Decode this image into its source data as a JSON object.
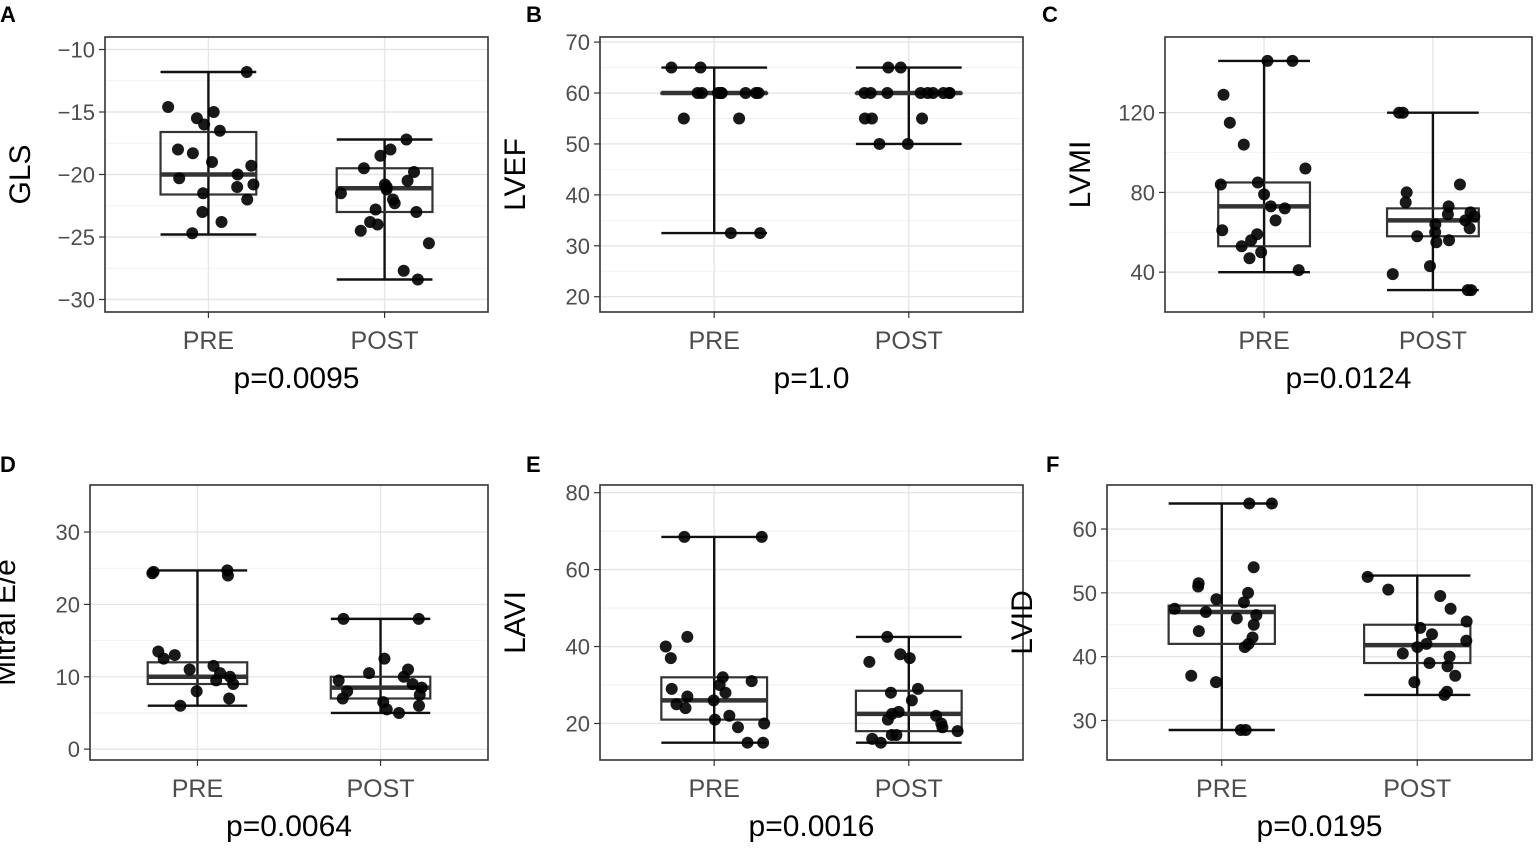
{
  "chart_data": [
    {
      "type": "boxplot",
      "panel_label": "A",
      "ylabel": "GLS",
      "xlabel": "p=0.0095",
      "categories": [
        "PRE",
        "POST"
      ],
      "ylim": [
        -31,
        -9
      ],
      "yticks": [
        -10,
        -15,
        -20,
        -25,
        -30
      ],
      "ytick_labels": [
        "−10",
        "−15",
        "−20",
        "−25",
        "−30"
      ],
      "series": [
        {
          "name": "PRE",
          "min": -24.8,
          "q1": -21.6,
          "median": -20.0,
          "q3": -16.6,
          "max": -11.8,
          "points": [
            -11.8,
            -14.6,
            -15.0,
            -15.5,
            -16.0,
            -16.5,
            -18.0,
            -18.3,
            -19.0,
            -19.3,
            -20.0,
            -20.3,
            -20.8,
            -21.0,
            -21.5,
            -22.0,
            -23.0,
            -23.8,
            -24.7
          ]
        },
        {
          "name": "POST",
          "min": -28.4,
          "q1": -23.0,
          "median": -21.1,
          "q3": -19.5,
          "max": -17.2,
          "points": [
            -17.2,
            -18.0,
            -18.5,
            -19.5,
            -19.8,
            -20.5,
            -20.8,
            -21.0,
            -21.2,
            -21.5,
            -22.0,
            -22.3,
            -22.8,
            -23.0,
            -23.8,
            -24.0,
            -24.5,
            -25.5,
            -27.7,
            -28.4
          ]
        }
      ]
    },
    {
      "type": "boxplot",
      "panel_label": "B",
      "ylabel": "LVEF",
      "xlabel": "p=1.0",
      "categories": [
        "PRE",
        "POST"
      ],
      "ylim": [
        17,
        71
      ],
      "yticks": [
        20,
        30,
        40,
        50,
        60,
        70
      ],
      "ytick_labels": [
        "20",
        "30",
        "40",
        "50",
        "60",
        "70"
      ],
      "series": [
        {
          "name": "PRE",
          "min": 32.5,
          "q1": 60,
          "median": 60,
          "q3": 60,
          "max": 65,
          "points": [
            65,
            65,
            60,
            60,
            60,
            60,
            60,
            60,
            60,
            60,
            60,
            60,
            55,
            55,
            32.5,
            32.5
          ]
        },
        {
          "name": "POST",
          "min": 50,
          "q1": 60,
          "median": 60,
          "q3": 60,
          "max": 65,
          "points": [
            65,
            65,
            60,
            60,
            60,
            60,
            60,
            60,
            60,
            60,
            60,
            55,
            55,
            55,
            50,
            50
          ]
        }
      ]
    },
    {
      "type": "boxplot",
      "panel_label": "C",
      "ylabel": "LVMI",
      "xlabel": "p=0.0124",
      "categories": [
        "PRE",
        "POST"
      ],
      "ylim": [
        20,
        158
      ],
      "yticks": [
        40,
        80,
        120
      ],
      "ytick_labels": [
        "40",
        "80",
        "120"
      ],
      "series": [
        {
          "name": "PRE",
          "min": 40,
          "q1": 53,
          "median": 73,
          "q3": 85,
          "max": 146,
          "points": [
            146,
            146,
            129,
            115,
            104,
            92,
            85,
            84,
            79,
            73,
            72,
            66,
            61,
            59,
            56,
            53,
            50,
            47,
            41
          ]
        },
        {
          "name": "POST",
          "min": 31,
          "q1": 58,
          "median": 66,
          "q3": 72,
          "max": 120,
          "points": [
            120,
            120,
            84,
            80,
            75,
            73,
            70,
            69,
            68,
            66,
            64,
            62,
            60,
            58,
            56,
            55,
            43,
            39,
            31,
            31
          ]
        }
      ]
    },
    {
      "type": "boxplot",
      "panel_label": "D",
      "ylabel": "Mitral E/e",
      "xlabel": "p=0.0064",
      "categories": [
        "PRE",
        "POST"
      ],
      "ylim": [
        -1.5,
        36.5
      ],
      "yticks": [
        0,
        10,
        20,
        30
      ],
      "ytick_labels": [
        "0",
        "10",
        "20",
        "30"
      ],
      "series": [
        {
          "name": "PRE",
          "min": 6,
          "q1": 9,
          "median": 10,
          "q3": 12,
          "max": 24.7,
          "points": [
            24.7,
            24.5,
            24.3,
            24.0,
            13.5,
            13.0,
            12.5,
            11.5,
            11.0,
            10.5,
            10.0,
            9.5,
            9.0,
            8.0,
            7.0,
            6.0
          ]
        },
        {
          "name": "POST",
          "min": 5,
          "q1": 7,
          "median": 8.5,
          "q3": 10,
          "max": 18,
          "points": [
            18,
            18,
            12.5,
            11.0,
            10.5,
            10.0,
            9.5,
            9.0,
            8.5,
            8.0,
            7.5,
            7.0,
            6.5,
            6.0,
            5.5,
            5.0
          ]
        }
      ]
    },
    {
      "type": "boxplot",
      "panel_label": "E",
      "ylabel": "LAVI",
      "xlabel": "p=0.0016",
      "categories": [
        "PRE",
        "POST"
      ],
      "ylim": [
        10.5,
        82
      ],
      "yticks": [
        20,
        40,
        60,
        80
      ],
      "ytick_labels": [
        "20",
        "40",
        "60",
        "80"
      ],
      "series": [
        {
          "name": "PRE",
          "min": 15,
          "q1": 21,
          "median": 26,
          "q3": 32,
          "max": 68.5,
          "points": [
            68.5,
            68.5,
            42.5,
            40,
            37,
            32,
            31,
            30,
            29,
            28,
            27,
            26,
            25,
            24,
            22,
            21,
            20,
            19,
            15,
            15
          ]
        },
        {
          "name": "POST",
          "min": 15,
          "q1": 18,
          "median": 22.5,
          "q3": 28.5,
          "max": 42.5,
          "points": [
            42.5,
            38,
            37,
            36,
            29,
            28,
            26,
            23,
            22.5,
            22,
            21,
            20,
            19,
            18,
            17,
            17,
            16,
            15
          ]
        }
      ]
    },
    {
      "type": "boxplot",
      "panel_label": "F",
      "ylabel": "LVID",
      "xlabel": "p=0.0195",
      "categories": [
        "PRE",
        "POST"
      ],
      "ylim": [
        23.8,
        66.9
      ],
      "yticks": [
        30,
        40,
        50,
        60
      ],
      "ytick_labels": [
        "30",
        "40",
        "50",
        "60"
      ],
      "series": [
        {
          "name": "PRE",
          "min": 28.5,
          "q1": 42,
          "median": 47,
          "q3": 48,
          "max": 64,
          "points": [
            64,
            64,
            54,
            51.5,
            51,
            50,
            49,
            48.5,
            47.5,
            47,
            46.5,
            46,
            45,
            44,
            43,
            42,
            41.5,
            37,
            36,
            28.5,
            28.5
          ]
        },
        {
          "name": "POST",
          "min": 34,
          "q1": 39,
          "median": 41.8,
          "q3": 45,
          "max": 52.7,
          "points": [
            52.5,
            50.5,
            49.5,
            47.5,
            45.5,
            44.5,
            43.5,
            42.5,
            42,
            41.5,
            40.5,
            40,
            39,
            38.5,
            37,
            36,
            34.5,
            34
          ]
        }
      ]
    }
  ]
}
